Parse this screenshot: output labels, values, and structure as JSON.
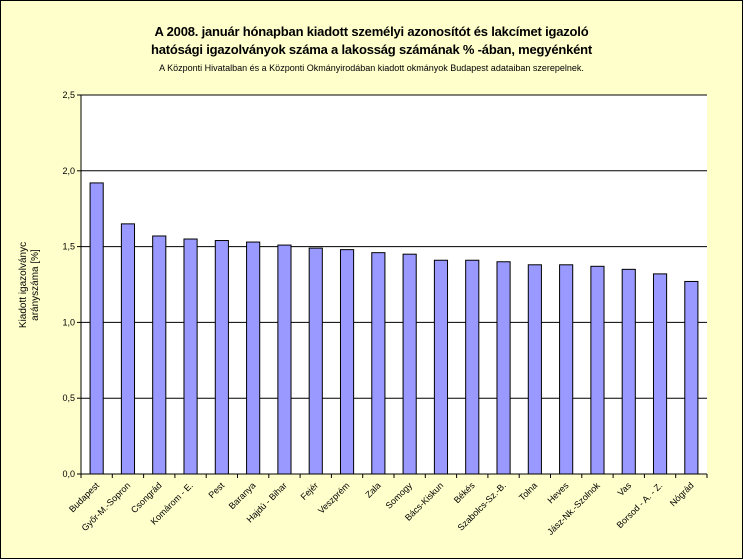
{
  "chart_data": {
    "type": "bar",
    "title_line1": "A 2008. január hónapban kiadott személyi azonosítót és lakcímet igazoló",
    "title_line2": "hatósági igazolványok száma a lakosság  számának % -ában, megyénként",
    "subtitle": "A Központi Hivatalban és a Központi Okmányirodában kiadott okmányok Budapest adataiban szerepelnek.",
    "ylabel_line1": "Kiadott igazolványc",
    "ylabel_line2": "arányszáma [%]",
    "xlabel": "",
    "ylim": [
      0,
      2.5
    ],
    "yticks": [
      "0,0",
      "0,5",
      "1,0",
      "1,5",
      "2,0",
      "2,5"
    ],
    "yticks_values": [
      0,
      0.5,
      1.0,
      1.5,
      2.0,
      2.5
    ],
    "grid": true,
    "legend": "none",
    "bar_color": "#9999ff",
    "plot_background": "#ffffff",
    "page_background": "#ffffcc",
    "categories": [
      "Budapest",
      "Győr-M.-Sopron",
      "Csongrád",
      "Komárom - E.",
      "Pest",
      "Baranya",
      "Hajdú - Bihar",
      "Fejér",
      "Veszprém",
      "Zala",
      "Somogy",
      "Bács-Kiskun",
      "Békés",
      "Szabolcs-Sz.-B.",
      "Tolna",
      "Heves",
      "Jász-Nk.-Szolnok",
      "Vas",
      "Borsod - A. - Z.",
      "Nógrád"
    ],
    "values": [
      1.92,
      1.65,
      1.57,
      1.55,
      1.54,
      1.53,
      1.51,
      1.49,
      1.48,
      1.46,
      1.45,
      1.41,
      1.41,
      1.4,
      1.38,
      1.38,
      1.37,
      1.35,
      1.32,
      1.27
    ]
  }
}
